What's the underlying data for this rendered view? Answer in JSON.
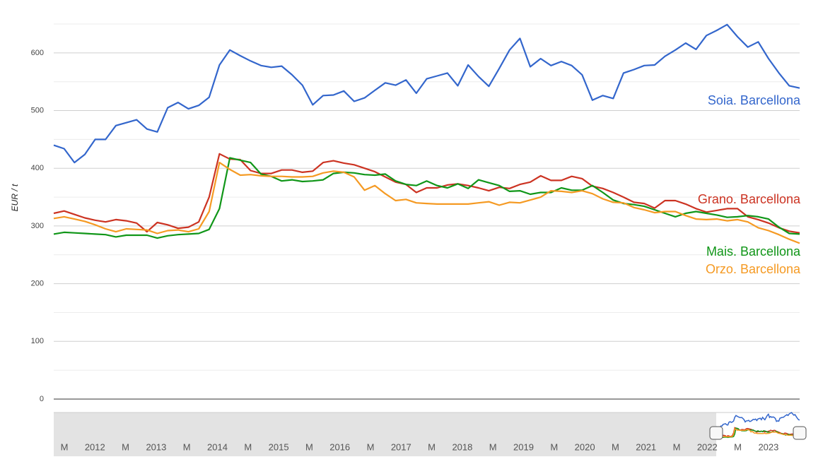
{
  "chart_data": {
    "type": "line",
    "y_label": "EUR / t",
    "ylim": [
      0,
      650
    ],
    "yticks": [
      0,
      100,
      200,
      300,
      400,
      500,
      600
    ],
    "minor_yticks": [
      50,
      150,
      250,
      350,
      450,
      550,
      650
    ],
    "grid": true,
    "categories": [
      null,
      null,
      null,
      null,
      null,
      null,
      null,
      null,
      null,
      null,
      null,
      null,
      null,
      null,
      null,
      null,
      null,
      null,
      null,
      null,
      null,
      null,
      null,
      null,
      null,
      null,
      null,
      null,
      null,
      null,
      null,
      null,
      null,
      null,
      null,
      null,
      null,
      null,
      null,
      null,
      null,
      null,
      null,
      null,
      null,
      null,
      null,
      null,
      null,
      null,
      null,
      null,
      null,
      null,
      null,
      null,
      null,
      null,
      null,
      null,
      null,
      null,
      null,
      null,
      null,
      null,
      null,
      null,
      null,
      null,
      null,
      null,
      null
    ],
    "series": [
      {
        "name": "Soia. Barcellona",
        "color": "#3366cc",
        "values": [
          440,
          434,
          410,
          424,
          450,
          450,
          474,
          479,
          484,
          468,
          463,
          505,
          514,
          503,
          509,
          523,
          579,
          605,
          595,
          586,
          578,
          575,
          577,
          562,
          544,
          510,
          526,
          527,
          534,
          516,
          522,
          535,
          548,
          544,
          553,
          530,
          555,
          560,
          565,
          543,
          579,
          559,
          542,
          573,
          605,
          625,
          576,
          590,
          578,
          585,
          578,
          562,
          518,
          526,
          521,
          565,
          571,
          578,
          579,
          594,
          605,
          617,
          606,
          630,
          639,
          649,
          628,
          610,
          619,
          590,
          565,
          543,
          539
        ]
      },
      {
        "name": "Grano. Barcellona",
        "color": "#cc3322",
        "values": [
          322,
          326,
          320,
          314,
          310,
          307,
          311,
          309,
          305,
          290,
          306,
          302,
          296,
          298,
          307,
          350,
          425,
          416,
          415,
          396,
          391,
          391,
          397,
          397,
          393,
          395,
          410,
          413,
          409,
          406,
          400,
          394,
          385,
          376,
          372,
          358,
          366,
          366,
          371,
          373,
          370,
          366,
          361,
          367,
          365,
          372,
          376,
          387,
          379,
          379,
          386,
          382,
          369,
          365,
          358,
          350,
          341,
          339,
          331,
          344,
          344,
          338,
          330,
          324,
          327,
          330,
          330,
          316,
          311,
          305,
          297,
          291,
          288
        ]
      },
      {
        "name": "Mais. Barcellona",
        "color": "#109618",
        "values": [
          286,
          289,
          288,
          287,
          286,
          285,
          281,
          284,
          284,
          284,
          279,
          283,
          285,
          286,
          287,
          294,
          330,
          418,
          414,
          410,
          390,
          386,
          378,
          380,
          377,
          378,
          380,
          391,
          393,
          392,
          389,
          388,
          390,
          378,
          372,
          370,
          378,
          370,
          366,
          373,
          365,
          380,
          375,
          370,
          360,
          361,
          355,
          358,
          358,
          366,
          362,
          362,
          370,
          358,
          345,
          339,
          337,
          334,
          328,
          322,
          316,
          322,
          325,
          322,
          319,
          315,
          316,
          318,
          316,
          312,
          298,
          287,
          286
        ]
      },
      {
        "name": "Orzo. Barcellona",
        "color": "#f59a23",
        "values": [
          313,
          316,
          312,
          308,
          302,
          295,
          290,
          295,
          294,
          293,
          287,
          292,
          293,
          290,
          295,
          325,
          410,
          398,
          388,
          389,
          387,
          386,
          386,
          385,
          385,
          386,
          392,
          395,
          393,
          385,
          362,
          370,
          356,
          344,
          346,
          340,
          339,
          338,
          338,
          338,
          338,
          340,
          342,
          336,
          341,
          340,
          345,
          350,
          361,
          360,
          358,
          361,
          356,
          347,
          341,
          340,
          332,
          328,
          323,
          325,
          325,
          318,
          312,
          311,
          312,
          309,
          311,
          307,
          297,
          292,
          285,
          277,
          270
        ]
      }
    ]
  },
  "navigator": {
    "labels": [
      "M",
      "2012",
      "M",
      "2013",
      "M",
      "2014",
      "M",
      "2015",
      "M",
      "2016",
      "M",
      "2017",
      "M",
      "2018",
      "M",
      "2019",
      "M",
      "2020",
      "M",
      "2021",
      "M",
      "2022",
      "M",
      "2023"
    ]
  }
}
